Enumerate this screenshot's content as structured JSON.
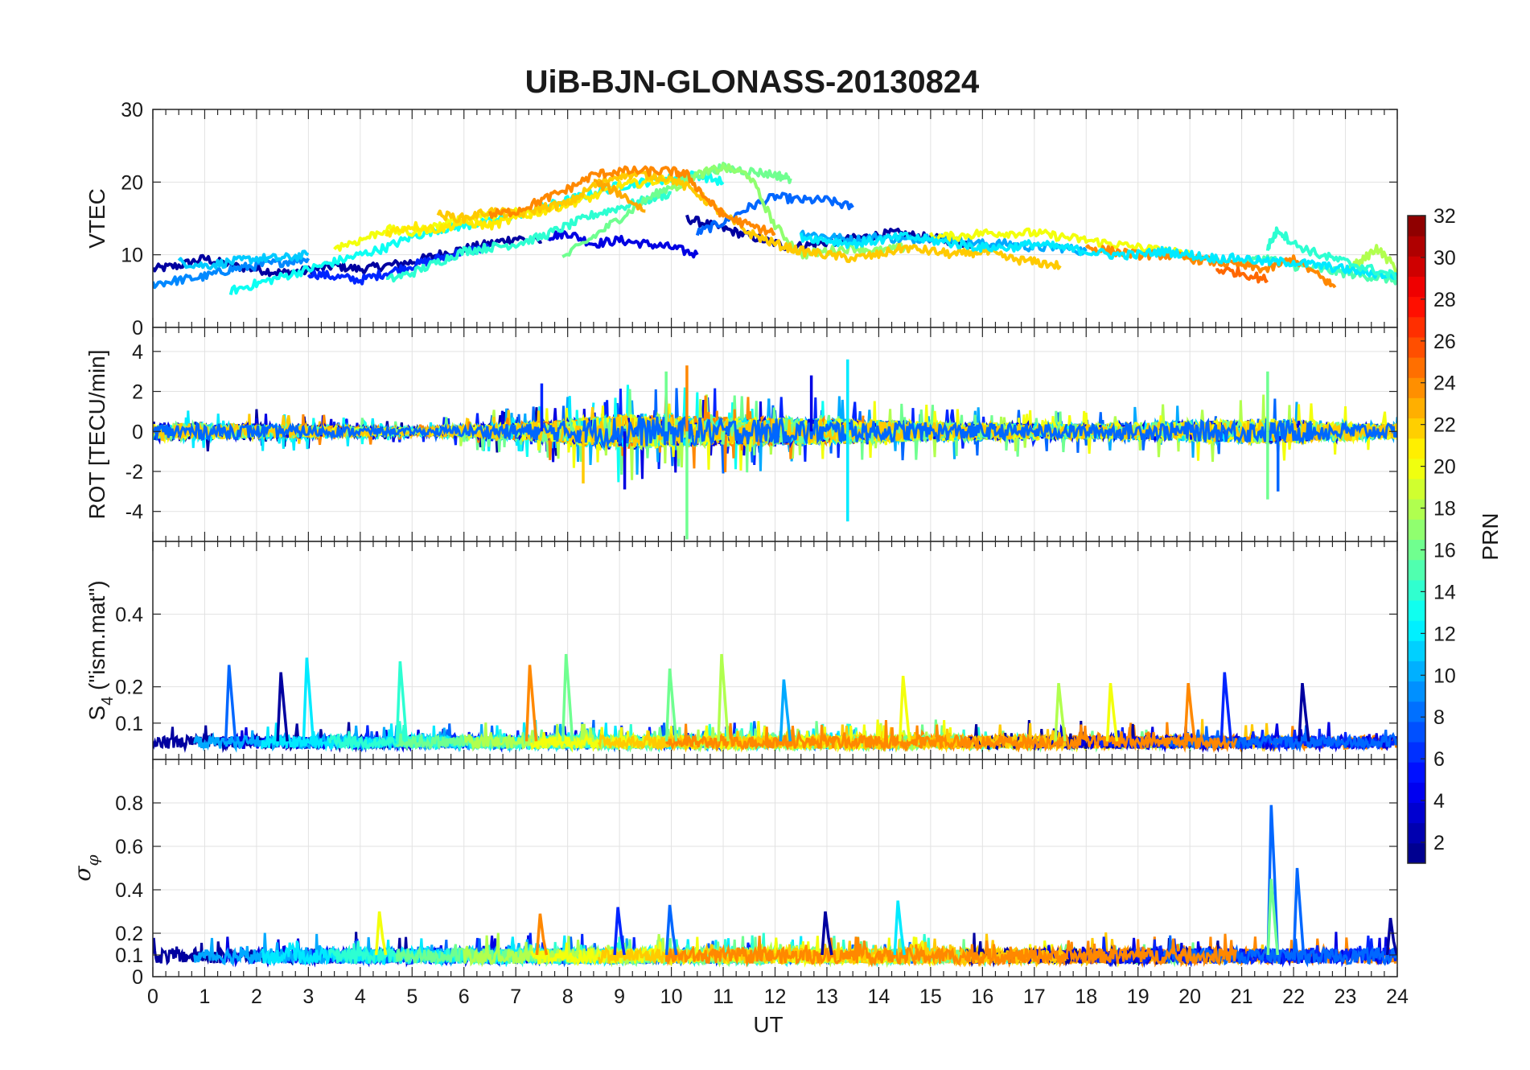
{
  "figure": {
    "title": "UiB-BJN-GLONASS-20130824",
    "xlabel": "UT",
    "x_range": [
      0,
      24
    ],
    "x_ticks": [
      0,
      1,
      2,
      3,
      4,
      5,
      6,
      7,
      8,
      9,
      10,
      11,
      12,
      13,
      14,
      15,
      16,
      17,
      18,
      19,
      20,
      21,
      22,
      23,
      24
    ]
  },
  "colorbar": {
    "label": "PRN",
    "range": [
      1,
      32
    ],
    "ticks": [
      2,
      4,
      6,
      8,
      10,
      12,
      14,
      16,
      18,
      20,
      22,
      24,
      26,
      28,
      30,
      32
    ],
    "colormap": "jet"
  },
  "chart_data": [
    {
      "type": "line",
      "panel": "vtec",
      "ylabel": "VTEC",
      "ylim": [
        0,
        30
      ],
      "yticks": [
        0,
        10,
        20,
        30
      ],
      "grid": true,
      "series": [
        {
          "prn": 2,
          "x": [
            0.0,
            0.5,
            1.0,
            1.5,
            2.0,
            2.5,
            3.0,
            3.5,
            4.0,
            4.5,
            5.0,
            5.5,
            6.0,
            6.5,
            7.0,
            7.5
          ],
          "y": [
            8.0,
            8.5,
            9.5,
            8.5,
            8.0,
            7.5,
            7.8,
            8.5,
            8.0,
            8.5,
            9.0,
            10.0,
            10.8,
            11.5,
            12.3,
            11.8
          ]
        },
        {
          "prn": 2,
          "x": [
            10.3,
            10.8,
            11.3,
            11.8,
            12.3,
            12.8,
            13.3,
            13.8,
            14.3,
            14.8,
            15.3,
            15.8
          ],
          "y": [
            15.0,
            14.0,
            13.0,
            12.0,
            11.0,
            11.5,
            12.0,
            12.5,
            13.0,
            12.5,
            12.0,
            11.5
          ]
        },
        {
          "prn": 4,
          "x": [
            7.6,
            8.0,
            8.5,
            9.0,
            9.5,
            10.0,
            10.5
          ],
          "y": [
            12.5,
            13.0,
            11.5,
            12.0,
            11.5,
            11.0,
            10.0
          ]
        },
        {
          "prn": 6,
          "x": [
            3.0,
            3.5,
            4.0,
            4.5,
            5.0,
            5.5,
            6.0,
            6.5
          ],
          "y": [
            7.5,
            7.0,
            6.5,
            7.5,
            8.5,
            9.5,
            10.5,
            11.0
          ]
        },
        {
          "prn": 8,
          "x": [
            10.5,
            11.0,
            11.5,
            12.0,
            12.5,
            13.0,
            13.5
          ],
          "y": [
            13.0,
            14.5,
            16.5,
            18.0,
            17.5,
            17.5,
            16.5
          ]
        },
        {
          "prn": 9,
          "x": [
            0.0,
            0.5,
            1.0,
            1.5,
            2.0,
            2.5,
            3.0
          ],
          "y": [
            6.0,
            6.5,
            7.0,
            8.0,
            8.5,
            9.0,
            9.5
          ]
        },
        {
          "prn": 10,
          "x": [
            12.5,
            13.0,
            13.5,
            14.0,
            14.5,
            15.0,
            15.5,
            16.0,
            16.5,
            17.0,
            17.5,
            18.0
          ],
          "y": [
            13.0,
            12.5,
            12.0,
            12.5,
            12.0,
            12.5,
            12.0,
            11.5,
            11.5,
            11.0,
            11.0,
            10.5
          ]
        },
        {
          "prn": 11,
          "x": [
            0.5,
            1.0,
            1.5,
            2.0,
            2.5,
            3.0
          ],
          "y": [
            9.0,
            8.5,
            9.0,
            9.5,
            9.5,
            10.0
          ]
        },
        {
          "prn": 13,
          "x": [
            1.5,
            2.0,
            2.5,
            3.0,
            3.5,
            4.0,
            4.5,
            5.0,
            5.5,
            6.0,
            6.5,
            7.0,
            7.5,
            8.0,
            8.5,
            9.0,
            9.5,
            10.0,
            10.5,
            11.0
          ],
          "y": [
            5.0,
            6.0,
            7.0,
            8.0,
            9.0,
            10.0,
            11.0,
            12.5,
            13.5,
            14.0,
            14.5,
            15.5,
            16.5,
            17.5,
            18.5,
            19.5,
            20.0,
            20.5,
            21.0,
            20.0
          ]
        },
        {
          "prn": 14,
          "x": [
            4.5,
            5.0,
            5.5,
            6.0,
            6.5,
            7.0,
            7.5,
            8.0,
            8.5,
            9.0,
            9.5,
            10.0
          ],
          "y": [
            6.5,
            7.5,
            9.0,
            10.5,
            11.0,
            11.5,
            12.5,
            14.0,
            15.5,
            16.5,
            17.5,
            18.5
          ]
        },
        {
          "prn": 15,
          "x": [
            21.0,
            21.5,
            22.0,
            22.5,
            23.0,
            23.5,
            24.0
          ],
          "y": [
            9.0,
            9.5,
            8.5,
            8.0,
            7.5,
            7.0,
            6.5
          ]
        },
        {
          "prn": 16,
          "x": [
            7.9,
            8.5,
            9.0,
            9.5,
            10.0,
            10.5,
            11.0,
            11.5,
            12.0,
            12.3
          ],
          "y": [
            9.5,
            12.5,
            15.0,
            17.5,
            19.5,
            21.0,
            22.0,
            21.5,
            21.0,
            20.5
          ]
        },
        {
          "prn": 17,
          "x": [
            10.0,
            10.5,
            11.0,
            11.5,
            12.0,
            12.5,
            13.0,
            13.5,
            14.0,
            14.5
          ],
          "y": [
            19.0,
            21.0,
            22.0,
            21.0,
            14.0,
            10.0,
            10.5,
            11.0,
            10.5,
            11.0
          ]
        },
        {
          "prn": 18,
          "x": [
            23.0,
            23.3,
            23.6,
            24.0
          ],
          "y": [
            8.0,
            9.0,
            11.0,
            8.0
          ]
        },
        {
          "prn": 20,
          "x": [
            15.0,
            15.5,
            16.0,
            16.5,
            17.0,
            17.5,
            18.0,
            18.5,
            19.0,
            19.5,
            20.0
          ],
          "y": [
            12.5,
            12.5,
            13.0,
            13.0,
            13.0,
            12.5,
            12.0,
            11.5,
            11.0,
            10.5,
            10.0
          ]
        },
        {
          "prn": 20,
          "x": [
            3.5,
            4.0,
            4.5,
            5.0,
            5.5,
            6.0,
            6.5,
            7.0,
            7.5
          ],
          "y": [
            11.0,
            12.0,
            13.5,
            13.0,
            14.0,
            15.0,
            15.5,
            16.0,
            15.5
          ]
        },
        {
          "prn": 21,
          "x": [
            4.5,
            5.0,
            5.5,
            6.0,
            6.5,
            7.0,
            7.5,
            8.0,
            8.5,
            9.0,
            9.5,
            10.0
          ],
          "y": [
            13.0,
            14.0,
            13.5,
            14.5,
            14.0,
            15.0,
            16.0,
            17.0,
            18.0,
            19.5,
            20.0,
            20.5
          ]
        },
        {
          "prn": 22,
          "x": [
            5.5,
            6.0,
            6.5,
            7.0,
            7.5,
            8.0,
            8.5,
            9.0,
            9.5,
            10.0,
            10.5,
            11.0,
            11.5,
            12.0,
            12.5,
            13.0,
            13.5,
            14.0,
            14.5,
            15.0,
            15.5,
            16.0,
            16.5,
            17.0,
            17.5
          ],
          "y": [
            15.5,
            15.0,
            16.0,
            15.5,
            16.5,
            17.0,
            19.5,
            21.0,
            21.0,
            20.5,
            18.5,
            15.5,
            13.0,
            11.5,
            10.5,
            10.0,
            9.5,
            10.0,
            11.0,
            10.5,
            10.0,
            10.5,
            9.5,
            9.0,
            8.5
          ]
        },
        {
          "prn": 24,
          "x": [
            6.5,
            7.0,
            7.5,
            8.0,
            8.5,
            9.0,
            9.5,
            10.0,
            10.3,
            10.7,
            11.0,
            11.5,
            12.0
          ],
          "y": [
            15.5,
            16.0,
            17.5,
            19.0,
            21.0,
            21.5,
            21.5,
            21.5,
            21.0,
            17.5,
            15.5,
            14.0,
            13.0
          ]
        },
        {
          "prn": 23,
          "x": [
            8.5,
            9.0,
            9.5
          ],
          "y": [
            20.0,
            18.5,
            16.0
          ]
        },
        {
          "prn": 24,
          "x": [
            18.0,
            18.5,
            19.0,
            19.5,
            20.0,
            20.5,
            21.0,
            21.5,
            22.0,
            22.5,
            22.8
          ],
          "y": [
            11.0,
            10.5,
            10.0,
            10.0,
            9.5,
            9.0,
            8.5,
            8.0,
            9.5,
            7.0,
            5.5
          ]
        },
        {
          "prn": 25,
          "x": [
            20.5,
            21.0,
            21.5
          ],
          "y": [
            8.0,
            7.5,
            6.5
          ]
        },
        {
          "prn": 12,
          "x": [
            12.5,
            13.0,
            13.5,
            14.0,
            14.5,
            15.0,
            15.5,
            16.0,
            16.5,
            17.0,
            17.5,
            18.0,
            18.5,
            19.0,
            19.5,
            20.0,
            20.5,
            21.0,
            21.5,
            22.0,
            22.5,
            23.0,
            23.5,
            24.0
          ],
          "y": [
            12.5,
            12.0,
            11.5,
            12.0,
            12.5,
            12.0,
            11.5,
            11.0,
            11.0,
            11.5,
            11.0,
            10.5,
            10.0,
            10.0,
            10.5,
            10.0,
            9.5,
            9.5,
            9.0,
            9.0,
            8.5,
            8.0,
            7.5,
            7.0
          ]
        },
        {
          "prn": 14,
          "x": [
            21.5,
            21.7,
            22.0,
            22.5,
            23.0,
            23.5,
            24.0
          ],
          "y": [
            11.0,
            13.5,
            11.5,
            10.0,
            9.0,
            8.0,
            7.0
          ]
        }
      ]
    },
    {
      "type": "line",
      "panel": "rot",
      "ylabel": "ROT [TECU/min]",
      "ylim": [
        -5.5,
        5.2
      ],
      "yticks": [
        -4,
        -2,
        0,
        2,
        4
      ],
      "grid": true,
      "noise_profile": [
        {
          "x": 0,
          "amp": 0.9
        },
        {
          "x": 3,
          "amp": 0.6
        },
        {
          "x": 5,
          "amp": 0.3
        },
        {
          "x": 7.5,
          "amp": 0.9
        },
        {
          "x": 9,
          "amp": 1.6
        },
        {
          "x": 10.5,
          "amp": 1.4
        },
        {
          "x": 13,
          "amp": 1.2
        },
        {
          "x": 15,
          "amp": 0.9
        },
        {
          "x": 18,
          "amp": 0.7
        },
        {
          "x": 21.5,
          "amp": 1.2
        },
        {
          "x": 24,
          "amp": 0.7
        }
      ],
      "spikes": [
        {
          "x": 10.3,
          "y": 3.3,
          "prn": 24
        },
        {
          "x": 10.3,
          "y": -5.4,
          "prn": 16
        },
        {
          "x": 13.4,
          "y": 3.6,
          "prn": 12
        },
        {
          "x": 13.4,
          "y": -4.5,
          "prn": 12
        },
        {
          "x": 7.5,
          "y": 2.4,
          "prn": 6
        },
        {
          "x": 8.3,
          "y": -2.6,
          "prn": 22
        },
        {
          "x": 9.1,
          "y": -2.9,
          "prn": 4
        },
        {
          "x": 9.9,
          "y": 3.0,
          "prn": 16
        },
        {
          "x": 12.7,
          "y": 2.8,
          "prn": 4
        },
        {
          "x": 21.5,
          "y": 3.0,
          "prn": 16
        },
        {
          "x": 21.5,
          "y": -3.4,
          "prn": 16
        },
        {
          "x": 21.7,
          "y": -3.0,
          "prn": 8
        }
      ],
      "series_prns": [
        2,
        4,
        6,
        8,
        10,
        12,
        13,
        16,
        18,
        20,
        22,
        24
      ]
    },
    {
      "type": "line",
      "panel": "s4",
      "ylabel": "S4 (\"ism.mat\")",
      "ylim": [
        0,
        0.6
      ],
      "yticks": [
        0.1,
        0.2,
        0.4
      ],
      "grid": true,
      "baseline": 0.05,
      "spikes": [
        {
          "x": 1.5,
          "y": 0.26,
          "prn": 8
        },
        {
          "x": 2.5,
          "y": 0.24,
          "prn": 2
        },
        {
          "x": 3.0,
          "y": 0.28,
          "prn": 12
        },
        {
          "x": 4.8,
          "y": 0.27,
          "prn": 14
        },
        {
          "x": 7.3,
          "y": 0.26,
          "prn": 24
        },
        {
          "x": 8.0,
          "y": 0.29,
          "prn": 16
        },
        {
          "x": 10.0,
          "y": 0.25,
          "prn": 16
        },
        {
          "x": 11.0,
          "y": 0.29,
          "prn": 18
        },
        {
          "x": 12.2,
          "y": 0.22,
          "prn": 10
        },
        {
          "x": 14.5,
          "y": 0.23,
          "prn": 20
        },
        {
          "x": 17.5,
          "y": 0.21,
          "prn": 18
        },
        {
          "x": 18.5,
          "y": 0.21,
          "prn": 20
        },
        {
          "x": 20.0,
          "y": 0.21,
          "prn": 24
        },
        {
          "x": 20.7,
          "y": 0.24,
          "prn": 6
        },
        {
          "x": 22.2,
          "y": 0.21,
          "prn": 2
        }
      ],
      "series_prns": [
        2,
        4,
        6,
        8,
        10,
        12,
        14,
        16,
        18,
        20,
        22,
        24
      ]
    },
    {
      "type": "line",
      "panel": "sigma_phi",
      "ylabel": "σφ",
      "ylim": [
        0,
        1
      ],
      "yticks": [
        0,
        0.1,
        0.2,
        0.4,
        0.6,
        0.8
      ],
      "grid": true,
      "baseline": 0.1,
      "spikes": [
        {
          "x": 4.4,
          "y": 0.3,
          "prn": 20
        },
        {
          "x": 7.5,
          "y": 0.29,
          "prn": 24
        },
        {
          "x": 9.0,
          "y": 0.32,
          "prn": 6
        },
        {
          "x": 10.0,
          "y": 0.33,
          "prn": 8
        },
        {
          "x": 13.0,
          "y": 0.3,
          "prn": 2
        },
        {
          "x": 14.4,
          "y": 0.35,
          "prn": 12
        },
        {
          "x": 21.6,
          "y": 0.79,
          "prn": 8
        },
        {
          "x": 21.6,
          "y": 0.45,
          "prn": 16
        },
        {
          "x": 22.1,
          "y": 0.5,
          "prn": 8
        },
        {
          "x": 23.9,
          "y": 0.27,
          "prn": 2
        }
      ],
      "series_prns": [
        2,
        4,
        6,
        8,
        10,
        12,
        14,
        16,
        18,
        20,
        22,
        24
      ]
    }
  ]
}
